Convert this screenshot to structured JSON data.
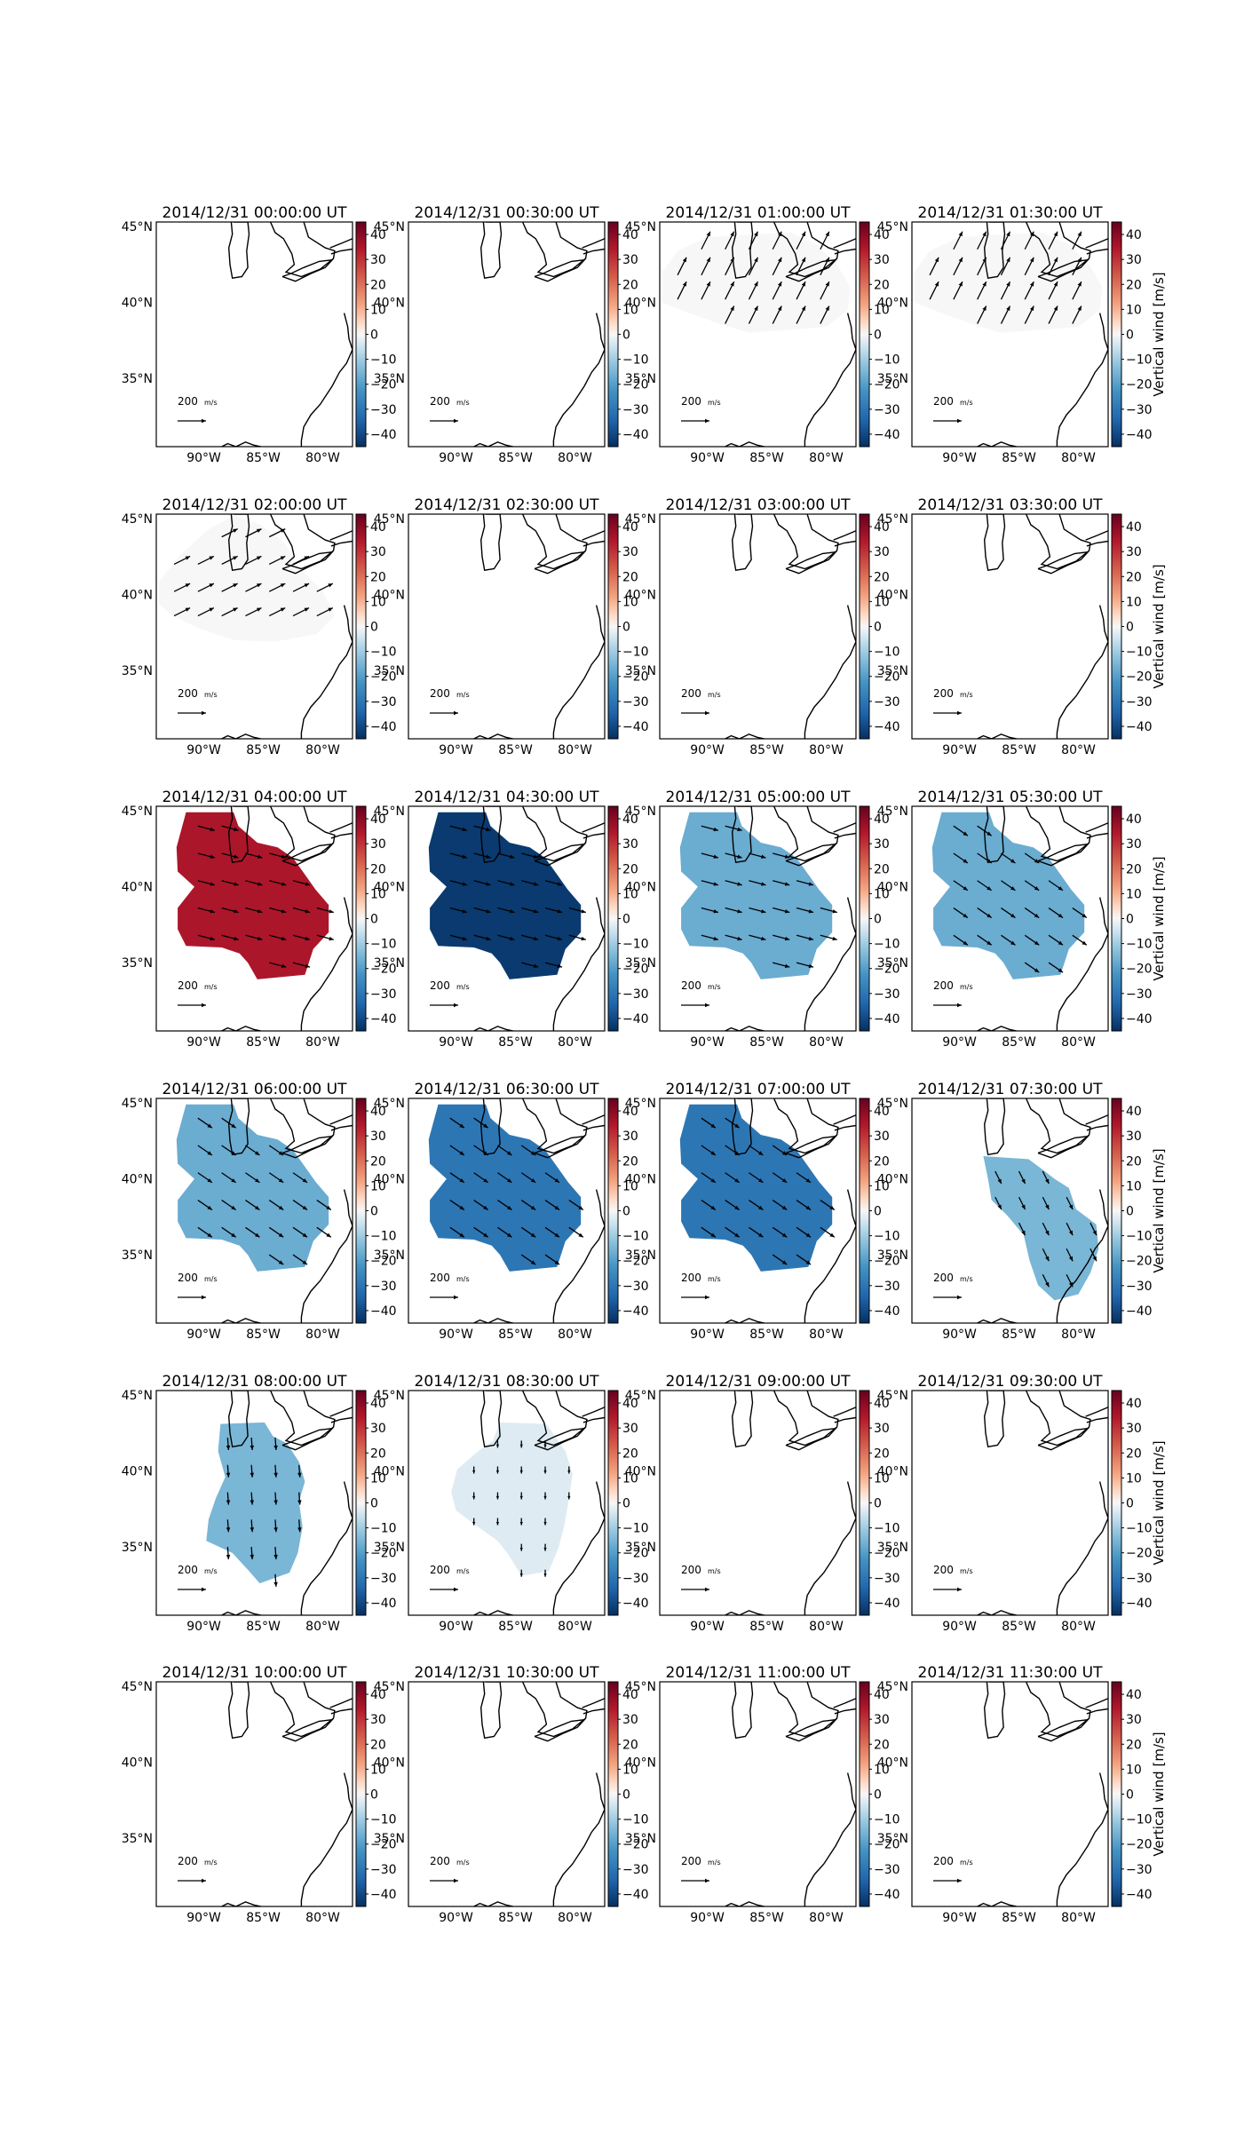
{
  "chart_data": {
    "type": "map-panel-grid",
    "colorbar_label": "Vertical wind [m/s]",
    "colorbar_ticks": [
      "40",
      "30",
      "20",
      "10",
      "0",
      "−10",
      "−20",
      "−30",
      "−40"
    ],
    "colorbar_range": [
      -45,
      45
    ],
    "lat_ticks": [
      "45°N",
      "40°N",
      "35°N"
    ],
    "lon_ticks": [
      "90°W",
      "85°W",
      "80°W"
    ],
    "reference_arrow_value": "200",
    "reference_arrow_unit": "m/s",
    "lat_range": [
      30.5,
      45.3
    ],
    "lon_range": [
      -94,
      -77.5
    ],
    "panels": [
      {
        "title": "2014/12/31 00:00:00 UT",
        "vertical_wind": null,
        "region": "none",
        "vectors": "none"
      },
      {
        "title": "2014/12/31 00:30:00 UT",
        "vertical_wind": null,
        "region": "none",
        "vectors": "none"
      },
      {
        "title": "2014/12/31 01:00:00 UT",
        "vertical_wind": 0,
        "region": "north-band",
        "vectors": "ne"
      },
      {
        "title": "2014/12/31 01:30:00 UT",
        "vertical_wind": 0,
        "region": "north-band",
        "vectors": "ne"
      },
      {
        "title": "2014/12/31 02:00:00 UT",
        "vertical_wind": 0,
        "region": "northwest-band",
        "vectors": "ne-e"
      },
      {
        "title": "2014/12/31 02:30:00 UT",
        "vertical_wind": null,
        "region": "none",
        "vectors": "none"
      },
      {
        "title": "2014/12/31 03:00:00 UT",
        "vertical_wind": null,
        "region": "none",
        "vectors": "none"
      },
      {
        "title": "2014/12/31 03:30:00 UT",
        "vertical_wind": null,
        "region": "none",
        "vectors": "none"
      },
      {
        "title": "2014/12/31 04:00:00 UT",
        "vertical_wind": 35,
        "region": "big",
        "vectors": "ese"
      },
      {
        "title": "2014/12/31 04:30:00 UT",
        "vertical_wind": -43,
        "region": "big",
        "vectors": "ese"
      },
      {
        "title": "2014/12/31 05:00:00 UT",
        "vertical_wind": -17,
        "region": "big",
        "vectors": "ese"
      },
      {
        "title": "2014/12/31 05:30:00 UT",
        "vertical_wind": -17,
        "region": "big",
        "vectors": "se"
      },
      {
        "title": "2014/12/31 06:00:00 UT",
        "vertical_wind": -17,
        "region": "big",
        "vectors": "se"
      },
      {
        "title": "2014/12/31 06:30:00 UT",
        "vertical_wind": -30,
        "region": "big",
        "vectors": "se"
      },
      {
        "title": "2014/12/31 07:00:00 UT",
        "vertical_wind": -30,
        "region": "big",
        "vectors": "se"
      },
      {
        "title": "2014/12/31 07:30:00 UT",
        "vertical_wind": -15,
        "region": "east",
        "vectors": "sse"
      },
      {
        "title": "2014/12/31 08:00:00 UT",
        "vertical_wind": -15,
        "region": "south",
        "vectors": "s"
      },
      {
        "title": "2014/12/31 08:30:00 UT",
        "vertical_wind": -3,
        "region": "south2",
        "vectors": "s-short"
      },
      {
        "title": "2014/12/31 09:00:00 UT",
        "vertical_wind": null,
        "region": "none",
        "vectors": "none"
      },
      {
        "title": "2014/12/31 09:30:00 UT",
        "vertical_wind": null,
        "region": "none",
        "vectors": "none"
      },
      {
        "title": "2014/12/31 10:00:00 UT",
        "vertical_wind": null,
        "region": "none",
        "vectors": "none"
      },
      {
        "title": "2014/12/31 10:30:00 UT",
        "vertical_wind": null,
        "region": "none",
        "vectors": "none"
      },
      {
        "title": "2014/12/31 11:00:00 UT",
        "vertical_wind": null,
        "region": "none",
        "vectors": "none"
      },
      {
        "title": "2014/12/31 11:30:00 UT",
        "vertical_wind": null,
        "region": "none",
        "vectors": "none"
      }
    ]
  }
}
